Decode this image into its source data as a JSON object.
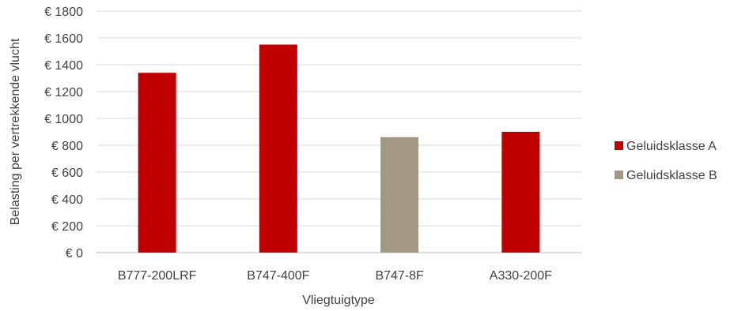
{
  "chart_data": {
    "type": "bar",
    "categories": [
      "B777-200LRF",
      "B747-400F",
      "B747-8F",
      "A330-200F"
    ],
    "values": [
      1340,
      1550,
      860,
      900
    ],
    "bar_classes": [
      "Geluidsklasse A",
      "Geluidsklasse A",
      "Geluidsklasse B",
      "Geluidsklasse A"
    ],
    "xlabel": "Vliegtuigtype",
    "ylabel": "Belasting per vertrekkende vlucht",
    "ylim": [
      0,
      1800
    ],
    "yticks": [
      0,
      200,
      400,
      600,
      800,
      1000,
      1200,
      1400,
      1600,
      1800
    ],
    "ytick_labels": [
      "€ 0",
      "€ 200",
      "€ 400",
      "€ 600",
      "€ 800",
      "€ 1000",
      "€ 1200",
      "€ 1400",
      "€ 1600",
      "€ 1800"
    ],
    "legend": [
      {
        "name": "Geluidsklasse A",
        "color": "#c00000"
      },
      {
        "name": "Geluidsklasse B",
        "color": "#a29883"
      }
    ],
    "legend_position": "right",
    "grid": true
  }
}
